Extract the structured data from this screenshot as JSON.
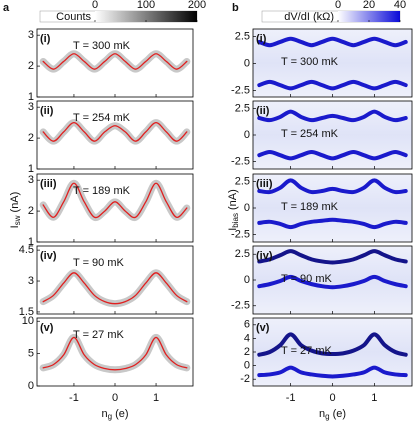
{
  "panels": [
    {
      "label": "a",
      "colorbar": {
        "label": "Counts",
        "lim": [
          0,
          200
        ],
        "ticks": [
          0,
          100,
          200
        ]
      },
      "ylabel": {
        "main": "I",
        "sub": "sw",
        "unit": "(nA)"
      },
      "xlabel": {
        "main": "n",
        "sub": "g",
        "unit": "(e)"
      }
    },
    {
      "label": "b",
      "colorbar": {
        "label": "dV/dI (kΩ)",
        "lim": [
          0,
          40
        ],
        "ticks": [
          0,
          20,
          40
        ]
      },
      "ylabel": {
        "main": "I",
        "sub": "bias",
        "unit": "(nA)"
      },
      "xlabel": {
        "main": "n",
        "sub": "g",
        "unit": "(e)"
      }
    }
  ],
  "chart_data": [
    {
      "type": "line",
      "label": "(i)",
      "annotation": "T = 300 mK",
      "x": [
        -1.75,
        -1.5,
        -1.25,
        -1,
        -0.75,
        -0.5,
        -0.25,
        0,
        0.25,
        0.5,
        0.75,
        1,
        1.25,
        1.5,
        1.75
      ],
      "xlim": [
        -1.9,
        1.9
      ],
      "xticks": [
        -1,
        0,
        1
      ],
      "ylim": [
        1,
        3.2
      ],
      "yticks": [
        1,
        2,
        3
      ],
      "series": [
        {
          "color": "#e02020",
          "values": [
            2.15,
            1.9,
            2.15,
            2.4,
            2.15,
            1.9,
            2.15,
            2.4,
            2.15,
            1.9,
            2.15,
            2.4,
            2.15,
            1.9,
            2.15
          ]
        }
      ]
    },
    {
      "type": "line",
      "label": "(ii)",
      "annotation": "T = 254 mK",
      "x": [
        -1.75,
        -1.5,
        -1.25,
        -1,
        -0.75,
        -0.5,
        -0.25,
        0,
        0.25,
        0.5,
        0.75,
        1,
        1.25,
        1.5,
        1.75
      ],
      "xlim": [
        -1.9,
        1.9
      ],
      "xticks": [
        -1,
        0,
        1
      ],
      "ylim": [
        1,
        3.2
      ],
      "yticks": [
        1,
        2,
        3
      ],
      "series": [
        {
          "color": "#e02020",
          "values": [
            2.2,
            1.9,
            2.2,
            2.5,
            2.2,
            1.9,
            2.2,
            2.4,
            2.2,
            1.9,
            2.2,
            2.5,
            2.2,
            1.9,
            2.2
          ]
        }
      ]
    },
    {
      "type": "line",
      "label": "(iii)",
      "annotation": "T = 189 mK",
      "x": [
        -1.75,
        -1.5,
        -1.25,
        -1,
        -0.75,
        -0.5,
        -0.25,
        0,
        0.25,
        0.5,
        0.75,
        1,
        1.25,
        1.5,
        1.75
      ],
      "xlim": [
        -1.9,
        1.9
      ],
      "xticks": [
        -1,
        0,
        1
      ],
      "ylim": [
        1,
        3.2
      ],
      "yticks": [
        1,
        2,
        3
      ],
      "series": [
        {
          "color": "#e02020",
          "values": [
            2.2,
            1.8,
            2.3,
            2.9,
            2.3,
            1.8,
            2.0,
            2.3,
            2.0,
            1.8,
            2.3,
            2.9,
            2.3,
            1.8,
            2.1
          ]
        }
      ]
    },
    {
      "type": "line",
      "label": "(iv)",
      "annotation": "T = 90 mK",
      "x": [
        -1.75,
        -1.5,
        -1.25,
        -1,
        -0.75,
        -0.5,
        -0.25,
        0,
        0.25,
        0.5,
        0.75,
        1,
        1.25,
        1.5,
        1.75
      ],
      "xlim": [
        -1.9,
        1.9
      ],
      "xticks": [
        -1,
        0,
        1
      ],
      "ylim": [
        1.4,
        4.7
      ],
      "yticks": [
        1.5,
        3,
        4.5
      ],
      "series": [
        {
          "color": "#e02020",
          "values": [
            2.0,
            2.3,
            2.9,
            3.4,
            2.9,
            2.3,
            2.0,
            1.9,
            2.0,
            2.3,
            2.9,
            3.4,
            2.9,
            2.3,
            2.0
          ]
        }
      ]
    },
    {
      "type": "line",
      "label": "(v)",
      "annotation": "T = 27 mK",
      "x": [
        -1.75,
        -1.5,
        -1.25,
        -1,
        -0.75,
        -0.5,
        -0.25,
        0,
        0.25,
        0.5,
        0.75,
        1,
        1.25,
        1.5,
        1.75
      ],
      "xlim": [
        -1.9,
        1.9
      ],
      "xticks": [
        -1,
        0,
        1
      ],
      "ylim": [
        0,
        10.5
      ],
      "yticks": [
        0,
        5,
        10
      ],
      "series": [
        {
          "color": "#e02020",
          "values": [
            2.8,
            3.3,
            4.8,
            7.5,
            4.8,
            3.3,
            2.7,
            2.5,
            2.7,
            3.3,
            4.8,
            7.5,
            4.8,
            3.3,
            2.8
          ]
        }
      ]
    },
    {
      "type": "line",
      "label": "(i)",
      "annotation": "T = 300 mK",
      "x": [
        -1.75,
        -1.5,
        -1.25,
        -1,
        -0.75,
        -0.5,
        -0.25,
        0,
        0.25,
        0.5,
        0.75,
        1,
        1.25,
        1.5,
        1.75
      ],
      "xlim": [
        -1.9,
        1.9
      ],
      "xticks": [
        -1,
        0,
        1
      ],
      "ylim": [
        -3.1,
        3.2
      ],
      "yticks": [
        -2.5,
        0,
        2.5
      ],
      "series": [
        {
          "color": "#1a1acc",
          "values": [
            2.0,
            1.7,
            2.0,
            2.3,
            2.0,
            1.7,
            2.0,
            2.3,
            2.0,
            1.7,
            2.0,
            2.3,
            2.0,
            1.7,
            2.0
          ]
        },
        {
          "color": "#1a1acc",
          "values": [
            -2.0,
            -1.7,
            -2.0,
            -2.3,
            -2.0,
            -1.7,
            -2.0,
            -2.3,
            -2.0,
            -1.7,
            -2.0,
            -2.3,
            -2.0,
            -1.7,
            -2.0
          ]
        }
      ]
    },
    {
      "type": "line",
      "label": "(ii)",
      "annotation": "T = 254 mK",
      "x": [
        -1.75,
        -1.5,
        -1.25,
        -1,
        -0.75,
        -0.5,
        -0.25,
        0,
        0.25,
        0.5,
        0.75,
        1,
        1.25,
        1.5,
        1.75
      ],
      "xlim": [
        -1.9,
        1.9
      ],
      "xticks": [
        -1,
        0,
        1
      ],
      "ylim": [
        -3.2,
        3.2
      ],
      "yticks": [
        -2.5,
        0,
        2.5
      ],
      "series": [
        {
          "color": "#1a1acc",
          "values": [
            1.6,
            1.4,
            1.7,
            2.2,
            1.7,
            1.4,
            1.6,
            1.8,
            1.6,
            1.4,
            1.7,
            2.2,
            1.7,
            1.4,
            1.6
          ]
        },
        {
          "color": "#1a1acc",
          "values": [
            -1.9,
            -1.6,
            -1.9,
            -2.2,
            -1.9,
            -1.6,
            -1.9,
            -2.2,
            -1.9,
            -1.6,
            -1.9,
            -2.2,
            -1.9,
            -1.6,
            -1.9
          ]
        }
      ]
    },
    {
      "type": "line",
      "label": "(iii)",
      "annotation": "T = 189 mK",
      "x": [
        -1.75,
        -1.5,
        -1.25,
        -1,
        -0.75,
        -0.5,
        -0.25,
        0,
        0.25,
        0.5,
        0.75,
        1,
        1.25,
        1.5,
        1.75
      ],
      "xlim": [
        -1.9,
        1.9
      ],
      "xticks": [
        -1,
        0,
        1
      ],
      "ylim": [
        -3.2,
        3.2
      ],
      "yticks": [
        -2.5,
        0,
        2.5
      ],
      "series": [
        {
          "color": "#1a1acc",
          "values": [
            1.6,
            1.5,
            1.9,
            2.6,
            1.9,
            1.5,
            1.6,
            1.8,
            1.6,
            1.5,
            1.9,
            2.6,
            1.9,
            1.5,
            1.6
          ]
        },
        {
          "color": "#1a1acc",
          "values": [
            -1.4,
            -1.3,
            -1.5,
            -1.8,
            -1.5,
            -1.3,
            -1.2,
            -1.1,
            -1.2,
            -1.3,
            -1.5,
            -1.8,
            -1.5,
            -1.3,
            -1.4
          ]
        }
      ]
    },
    {
      "type": "line",
      "label": "(iv)",
      "annotation": "T = 90 mK",
      "x": [
        -1.75,
        -1.5,
        -1.25,
        -1,
        -0.75,
        -0.5,
        -0.25,
        0,
        0.25,
        0.5,
        0.75,
        1,
        1.25,
        1.5,
        1.75
      ],
      "xlim": [
        -1.9,
        1.9
      ],
      "xticks": [
        -1,
        0,
        1
      ],
      "ylim": [
        -3.3,
        3.3
      ],
      "yticks": [
        -2.5,
        0,
        2.5
      ],
      "series": [
        {
          "color": "#14148a",
          "values": [
            1.8,
            2.0,
            2.4,
            2.8,
            2.4,
            2.0,
            1.8,
            1.7,
            1.8,
            2.0,
            2.4,
            2.8,
            2.4,
            2.0,
            1.8
          ]
        },
        {
          "color": "#1a1acc",
          "values": [
            -0.6,
            -0.4,
            -0.1,
            0.3,
            -0.1,
            -0.4,
            -0.6,
            -0.7,
            -0.6,
            -0.4,
            -0.1,
            0.3,
            -0.1,
            -0.4,
            -0.6
          ]
        }
      ]
    },
    {
      "type": "line",
      "label": "(v)",
      "annotation": "T = 27 mK",
      "x": [
        -1.75,
        -1.5,
        -1.25,
        -1,
        -0.75,
        -0.5,
        -0.25,
        0,
        0.25,
        0.5,
        0.75,
        1,
        1.25,
        1.5,
        1.75
      ],
      "xlim": [
        -1.9,
        1.9
      ],
      "xticks": [
        -1,
        0,
        1
      ],
      "ylim": [
        -3,
        7
      ],
      "yticks": [
        -2,
        0,
        2,
        4,
        6
      ],
      "series": [
        {
          "color": "#14148a",
          "values": [
            1.6,
            2.0,
            3.0,
            4.6,
            3.0,
            2.2,
            1.8,
            1.7,
            1.8,
            2.2,
            3.0,
            4.6,
            3.0,
            2.0,
            1.6
          ]
        },
        {
          "color": "#1a1acc",
          "values": [
            -1.4,
            -1.3,
            -1.0,
            -0.3,
            -1.0,
            -1.3,
            -1.5,
            -1.6,
            -1.5,
            -1.3,
            -1.0,
            -0.3,
            -1.0,
            -1.3,
            -1.4
          ]
        }
      ]
    }
  ]
}
